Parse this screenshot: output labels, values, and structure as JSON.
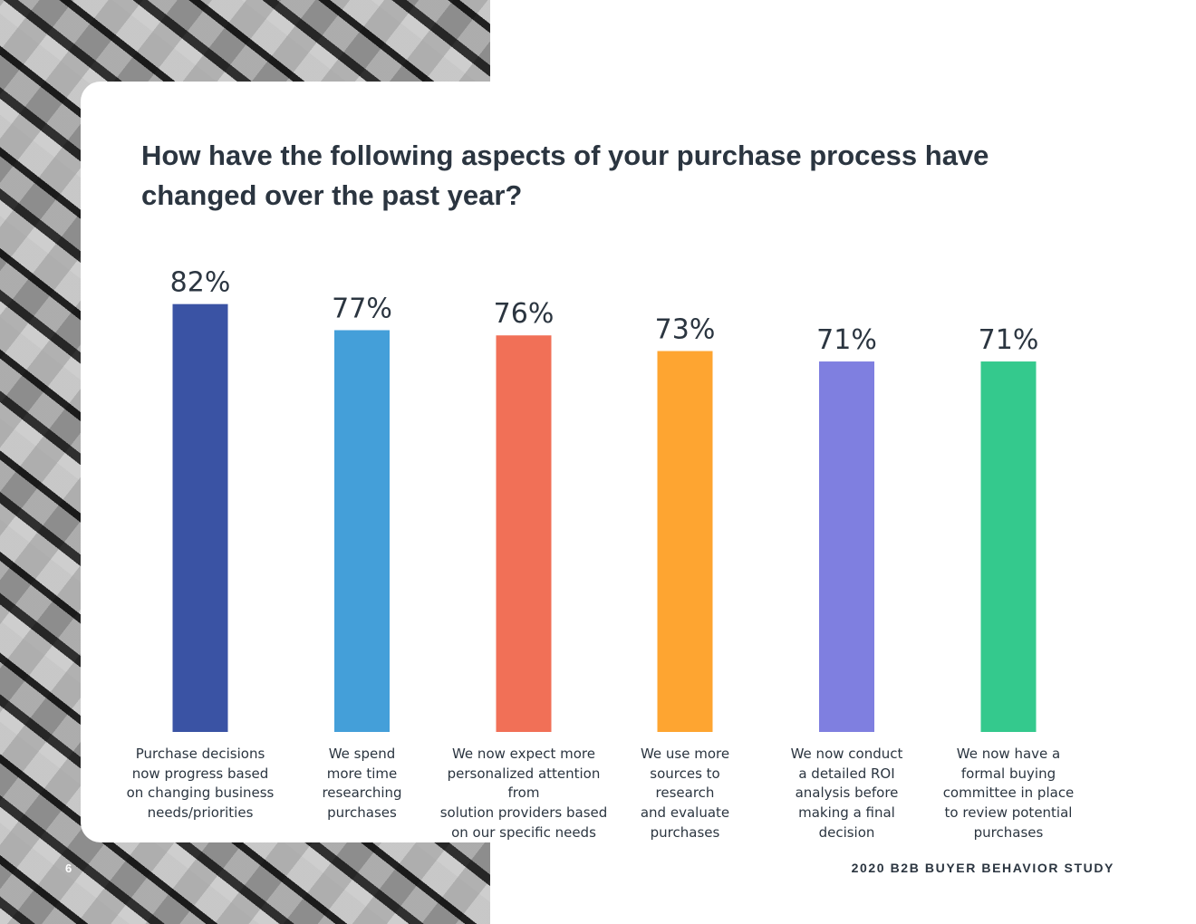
{
  "title": "How have the following aspects of your purchase process have changed over the past year?",
  "footer": {
    "page_number": "6",
    "report_title": "2020 B2B BUYER BEHAVIOR STUDY"
  },
  "chart_data": {
    "type": "bar",
    "title": "How have the following aspects of your purchase process have changed over the past year?",
    "categories": [
      "Purchase decisions\nnow progress based\non changing business\nneeds/priorities",
      "We spend\nmore time\nresearching\npurchases",
      "We now expect more\npersonalized attention from\nsolution providers based\non our specific needs",
      "We use more\nsources to\nresearch\nand evaluate\npurchases",
      "We now conduct\na detailed ROI\nanalysis before\nmaking a final\ndecision",
      "We now have a\nformal buying\ncommittee in place\nto review potential\npurchases"
    ],
    "values": [
      82,
      77,
      76,
      73,
      71,
      71
    ],
    "value_labels": [
      "82%",
      "77%",
      "76%",
      "73%",
      "71%",
      "71%"
    ],
    "colors": [
      "#3a53a4",
      "#449fd9",
      "#f17057",
      "#fea531",
      "#7f7fe0",
      "#34c98d"
    ],
    "ylim": [
      0,
      100
    ],
    "unit": "%",
    "grid": false,
    "legend": "none"
  }
}
